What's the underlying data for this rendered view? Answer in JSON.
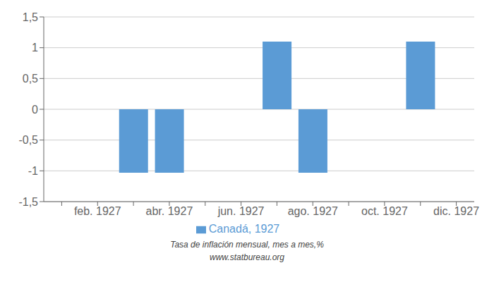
{
  "chart_data": {
    "type": "bar",
    "categories": [
      null,
      "feb. 1927",
      null,
      "abr. 1927",
      null,
      "jun. 1927",
      null,
      "ago. 1927",
      null,
      "oct. 1927",
      null,
      "dic. 1927"
    ],
    "series": [
      {
        "name": "Canadá, 1927",
        "color": "#5b9bd5",
        "values": [
          0,
          0,
          -1.03,
          -1.03,
          0,
          0,
          1.1,
          -1.03,
          0,
          0,
          1.1,
          0
        ]
      }
    ],
    "ylim": [
      -1.5,
      1.5
    ],
    "yticks": [
      {
        "value": -1.5,
        "label": "-1,5"
      },
      -1,
      {
        "value": -0.5,
        "label": "-0,5"
      },
      0,
      {
        "value": 0.5,
        "label": "0,5"
      },
      1,
      {
        "value": 1.5,
        "label": "1,5"
      }
    ],
    "grid": true,
    "legend": "bottom",
    "annotations": [
      "Tasa de inflación mensual, mes a mes,%",
      "www.statbureau.org"
    ]
  }
}
